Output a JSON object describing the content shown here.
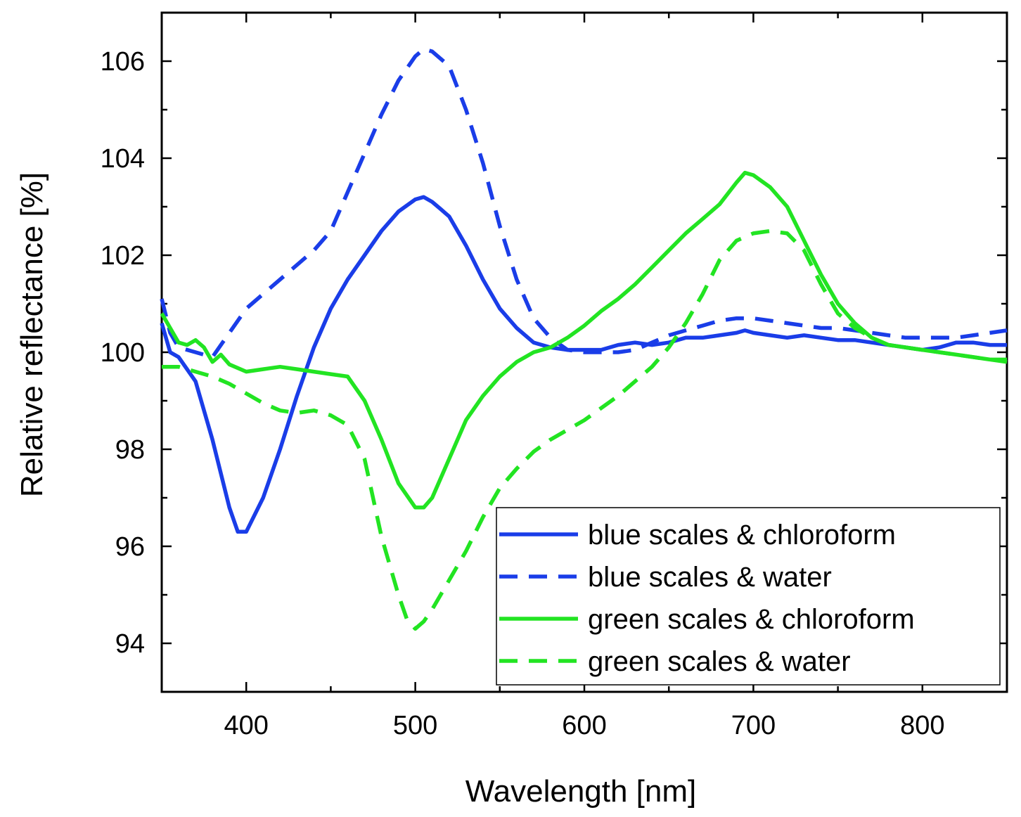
{
  "chart_data": {
    "type": "line",
    "xlabel": "Wavelength [nm]",
    "ylabel": "Relative reflectance [%]",
    "xlim": [
      350,
      850
    ],
    "ylim": [
      93,
      107
    ],
    "xticks": [
      400,
      500,
      600,
      700,
      800
    ],
    "xtick_labels": [
      "400",
      "500",
      "600",
      "700",
      "800"
    ],
    "yticks": [
      94,
      96,
      98,
      100,
      102,
      104,
      106
    ],
    "ytick_labels": [
      "94",
      "96",
      "98",
      "100",
      "102",
      "104",
      "106"
    ],
    "grid": false,
    "legend_position": "bottom-right",
    "colors": {
      "blue": "#1a3de8",
      "green": "#22e422"
    },
    "series": [
      {
        "name": "blue scales & chloroform",
        "color": "#1a3de8",
        "style": "solid",
        "x": [
          350,
          355,
          360,
          370,
          380,
          390,
          395,
          400,
          410,
          420,
          430,
          440,
          450,
          460,
          470,
          480,
          490,
          500,
          505,
          510,
          515,
          520,
          530,
          540,
          550,
          560,
          570,
          580,
          590,
          600,
          610,
          620,
          630,
          640,
          650,
          660,
          670,
          680,
          690,
          695,
          700,
          710,
          720,
          730,
          740,
          750,
          760,
          770,
          780,
          790,
          800,
          810,
          820,
          830,
          840,
          850
        ],
        "y": [
          100.6,
          100.0,
          99.9,
          99.4,
          98.2,
          96.8,
          96.3,
          96.3,
          97.0,
          98.0,
          99.1,
          100.1,
          100.9,
          101.5,
          102.0,
          102.5,
          102.9,
          103.15,
          103.2,
          103.1,
          102.95,
          102.8,
          102.2,
          101.5,
          100.9,
          100.5,
          100.2,
          100.1,
          100.05,
          100.05,
          100.05,
          100.15,
          100.2,
          100.15,
          100.2,
          100.3,
          100.3,
          100.35,
          100.4,
          100.45,
          100.4,
          100.35,
          100.3,
          100.35,
          100.3,
          100.25,
          100.25,
          100.2,
          100.15,
          100.1,
          100.05,
          100.1,
          100.2,
          100.2,
          100.15,
          100.15
        ]
      },
      {
        "name": "blue scales & water",
        "color": "#1a3de8",
        "style": "dashed",
        "x": [
          350,
          355,
          360,
          370,
          380,
          390,
          400,
          410,
          420,
          430,
          440,
          450,
          460,
          470,
          480,
          490,
          500,
          505,
          510,
          520,
          530,
          540,
          550,
          560,
          570,
          580,
          590,
          600,
          610,
          620,
          630,
          640,
          650,
          660,
          670,
          680,
          690,
          700,
          710,
          720,
          730,
          740,
          750,
          760,
          770,
          780,
          790,
          800,
          810,
          820,
          830,
          840,
          850
        ],
        "y": [
          101.1,
          100.4,
          100.1,
          100.0,
          99.9,
          100.4,
          100.9,
          101.2,
          101.5,
          101.8,
          102.1,
          102.5,
          103.3,
          104.1,
          104.9,
          105.6,
          106.1,
          106.25,
          106.2,
          105.9,
          105.0,
          103.9,
          102.6,
          101.5,
          100.7,
          100.3,
          100.05,
          100.0,
          100.0,
          100.0,
          100.05,
          100.2,
          100.35,
          100.45,
          100.55,
          100.65,
          100.7,
          100.7,
          100.65,
          100.6,
          100.55,
          100.5,
          100.5,
          100.45,
          100.4,
          100.35,
          100.3,
          100.3,
          100.3,
          100.3,
          100.35,
          100.4,
          100.45
        ]
      },
      {
        "name": "green scales & chloroform",
        "color": "#22e422",
        "style": "solid",
        "x": [
          350,
          355,
          360,
          365,
          370,
          375,
          380,
          385,
          390,
          400,
          410,
          420,
          430,
          440,
          450,
          460,
          470,
          480,
          490,
          500,
          505,
          510,
          520,
          530,
          540,
          550,
          560,
          570,
          580,
          590,
          600,
          610,
          620,
          630,
          640,
          650,
          660,
          670,
          680,
          690,
          695,
          700,
          710,
          720,
          730,
          740,
          750,
          760,
          770,
          780,
          790,
          800,
          810,
          820,
          830,
          840,
          850
        ],
        "y": [
          100.8,
          100.5,
          100.2,
          100.15,
          100.25,
          100.1,
          99.8,
          99.95,
          99.75,
          99.6,
          99.65,
          99.7,
          99.65,
          99.6,
          99.55,
          99.5,
          99.0,
          98.2,
          97.3,
          96.8,
          96.8,
          97.0,
          97.8,
          98.6,
          99.1,
          99.5,
          99.8,
          100.0,
          100.1,
          100.3,
          100.55,
          100.85,
          101.1,
          101.4,
          101.75,
          102.1,
          102.45,
          102.75,
          103.05,
          103.5,
          103.7,
          103.65,
          103.4,
          103.0,
          102.3,
          101.6,
          101.0,
          100.6,
          100.3,
          100.15,
          100.1,
          100.05,
          100.0,
          99.95,
          99.9,
          99.85,
          99.85
        ]
      },
      {
        "name": "green scales & water",
        "color": "#22e422",
        "style": "dashed",
        "x": [
          350,
          360,
          370,
          380,
          390,
          400,
          410,
          420,
          430,
          440,
          450,
          460,
          470,
          480,
          490,
          495,
          500,
          505,
          510,
          520,
          530,
          540,
          550,
          560,
          570,
          580,
          590,
          600,
          610,
          620,
          630,
          640,
          650,
          660,
          670,
          680,
          690,
          700,
          710,
          720,
          730,
          740,
          750,
          760,
          770,
          780,
          790,
          800,
          810,
          820,
          830,
          840,
          850
        ],
        "y": [
          99.7,
          99.7,
          99.6,
          99.5,
          99.35,
          99.15,
          98.95,
          98.8,
          98.75,
          98.8,
          98.7,
          98.5,
          97.8,
          96.2,
          95.0,
          94.5,
          94.3,
          94.45,
          94.7,
          95.3,
          95.9,
          96.6,
          97.2,
          97.6,
          97.95,
          98.2,
          98.4,
          98.6,
          98.85,
          99.1,
          99.4,
          99.7,
          100.1,
          100.6,
          101.2,
          101.9,
          102.3,
          102.45,
          102.5,
          102.45,
          102.1,
          101.4,
          100.8,
          100.5,
          100.3,
          100.15,
          100.1,
          100.05,
          100.0,
          99.95,
          99.9,
          99.85,
          99.8
        ]
      }
    ]
  }
}
